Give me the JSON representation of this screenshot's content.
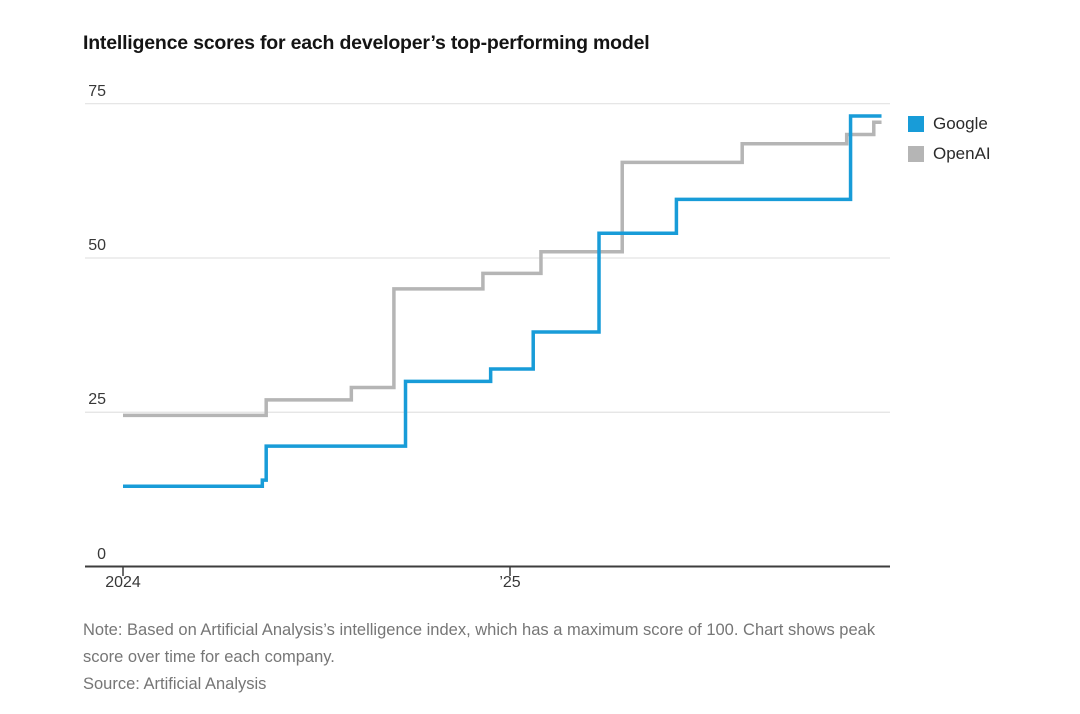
{
  "chart_data": {
    "type": "line",
    "subtype": "step-after",
    "title": "Intelligence scores for each developer’s top-performing model",
    "x_unit": "years since January 2024",
    "x_end": 1.96,
    "x_ticks": [
      {
        "x": 0,
        "label": "2024"
      },
      {
        "x": 1,
        "label": "’25"
      }
    ],
    "y_ticks": [
      {
        "v": 0,
        "label": "0"
      },
      {
        "v": 25,
        "label": "25"
      },
      {
        "v": 50,
        "label": "50"
      },
      {
        "v": 75,
        "label": "75"
      }
    ],
    "ylim": [
      0,
      75
    ],
    "grid": true,
    "legend_position": "top-right",
    "series": [
      {
        "name": "Google",
        "color": "#189cd8",
        "points": [
          [
            0,
            13
          ],
          [
            0.36,
            14
          ],
          [
            0.37,
            19.5
          ],
          [
            0.73,
            30
          ],
          [
            0.95,
            32
          ],
          [
            1.06,
            38
          ],
          [
            1.23,
            54
          ],
          [
            1.43,
            59.5
          ],
          [
            1.88,
            73
          ]
        ]
      },
      {
        "name": "OpenAI",
        "color": "#b5b5b5",
        "points": [
          [
            0,
            24.5
          ],
          [
            0.37,
            27
          ],
          [
            0.59,
            29
          ],
          [
            0.7,
            45
          ],
          [
            0.93,
            47.5
          ],
          [
            1.08,
            51
          ],
          [
            1.29,
            65.5
          ],
          [
            1.6,
            68.5
          ],
          [
            1.87,
            70
          ],
          [
            1.94,
            72
          ]
        ]
      }
    ],
    "note_lines": [
      "Note: Based on Artificial Analysis’s intelligence index, which has a maximum score of 100. Chart shows peak",
      "score over time for each company."
    ],
    "source": "Source: Artificial Analysis"
  }
}
